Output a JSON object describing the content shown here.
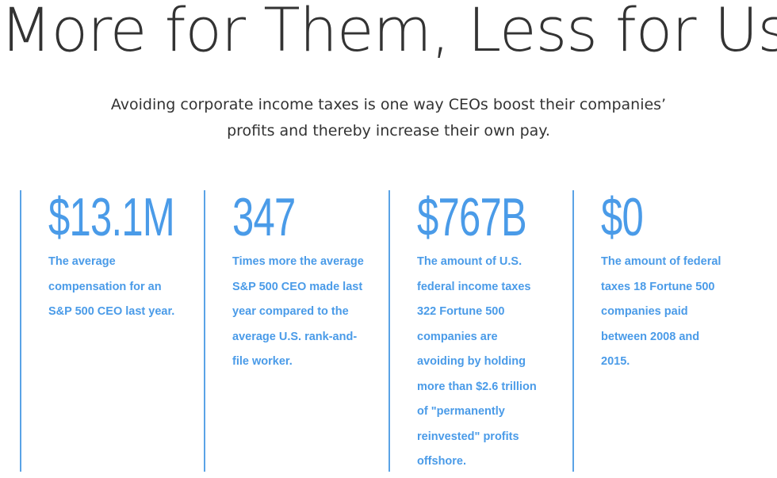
{
  "header": {
    "title": "More for Them, Less for Us",
    "intro": "Avoiding corporate income taxes is one way CEOs boost their companies’ profits and thereby increase their own pay."
  },
  "colors": {
    "accent": "#4a9be8",
    "divider": "#5aa3e6",
    "text": "#333333"
  },
  "stats": [
    {
      "value": "$13.1M",
      "description": "The average compensation for an S&P 500 CEO last year."
    },
    {
      "value": "347",
      "description": "Times more the average S&P 500 CEO made last year compared to the average U.S. rank-and-file worker."
    },
    {
      "value": "$767B",
      "description": "The amount of U.S. federal income taxes 322 Fortune 500 companies are avoiding by holding more than $2.6 trillion of \"permanently reinvested\" profits offshore."
    },
    {
      "value": "$0",
      "description": "The amount of federal taxes 18 Fortune 500 companies paid between 2008 and 2015."
    }
  ]
}
